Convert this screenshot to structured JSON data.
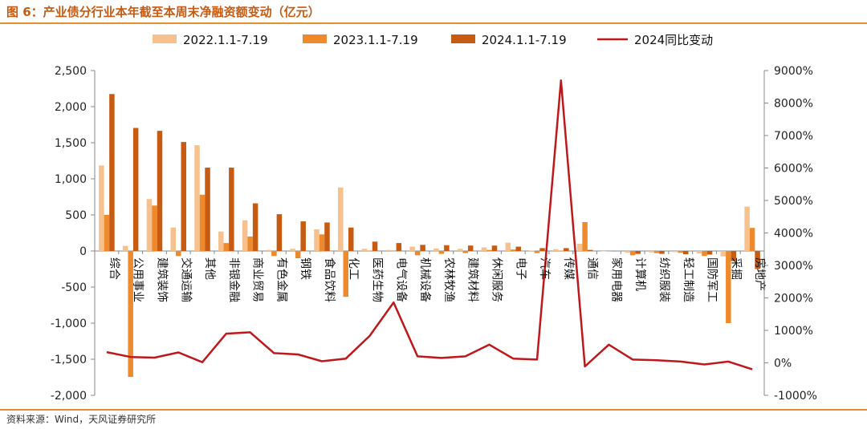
{
  "title": "图 6：产业债分行业本年截至本周末净融资额变动（亿元）",
  "source": "资料来源：Wind，天风证券研究所",
  "chart_data": {
    "type": "bar",
    "title": "图 6：产业债分行业本年截至本周末净融资额变动（亿元）",
    "categories": [
      "综合",
      "公用事业",
      "建筑装饰",
      "交通运输",
      "其他",
      "非银金融",
      "商业贸易",
      "有色金属",
      "钢铁",
      "食品饮料",
      "化工",
      "医药生物",
      "电气设备",
      "机械设备",
      "农林牧渔",
      "建筑材料",
      "休闲服务",
      "电子",
      "汽车",
      "传媒",
      "通信",
      "家用电器",
      "计算机",
      "纺织服装",
      "轻工制造",
      "国防军工",
      "采掘",
      "房地产"
    ],
    "series": [
      {
        "name": "2022.1.1-7.19",
        "type": "bar",
        "axis": "left",
        "color": "#f6c18d",
        "values": [
          1185,
          70,
          720,
          325,
          1465,
          270,
          425,
          15,
          30,
          300,
          880,
          30,
          15,
          60,
          35,
          30,
          50,
          115,
          5,
          25,
          100,
          0,
          -25,
          -20,
          -15,
          -35,
          -75,
          615
        ]
      },
      {
        "name": "2023.1.1-7.19",
        "type": "bar",
        "axis": "left",
        "color": "#ef8a2c",
        "values": [
          500,
          -1745,
          630,
          -70,
          780,
          110,
          200,
          -70,
          -100,
          230,
          -635,
          5,
          0,
          -60,
          -40,
          -30,
          15,
          20,
          -30,
          5,
          400,
          0,
          -60,
          -30,
          -25,
          -70,
          -1000,
          320
        ]
      },
      {
        "name": "2024.1.1-7.19",
        "type": "bar",
        "axis": "left",
        "color": "#c75b12",
        "values": [
          2175,
          1705,
          1665,
          1510,
          1155,
          1155,
          660,
          510,
          410,
          395,
          325,
          130,
          110,
          85,
          80,
          75,
          75,
          60,
          40,
          40,
          15,
          0,
          -40,
          -40,
          -45,
          -50,
          -140,
          -250
        ]
      },
      {
        "name": "2024同比变动",
        "type": "line",
        "axis": "right",
        "color": "#c0171b",
        "values": [
          330,
          180,
          160,
          320,
          20,
          900,
          940,
          300,
          260,
          50,
          130,
          830,
          1860,
          200,
          150,
          200,
          560,
          130,
          100,
          8700,
          -110,
          560,
          100,
          80,
          40,
          -50,
          40,
          -200
        ]
      }
    ],
    "y_left": {
      "ylim": [
        -2000,
        2500
      ],
      "ticks": [
        "2,500",
        "2,000",
        "1,500",
        "1,000",
        "500",
        "0",
        "-500",
        "-1,000",
        "-1,500",
        "-2,000"
      ]
    },
    "y_right": {
      "ylim": [
        -1000,
        9000
      ],
      "ticks": [
        "9000%",
        "8000%",
        "7000%",
        "6000%",
        "5000%",
        "4000%",
        "3000%",
        "2000%",
        "1000%",
        "0%",
        "-1000%"
      ]
    },
    "legend_position": "top",
    "grid": false
  }
}
